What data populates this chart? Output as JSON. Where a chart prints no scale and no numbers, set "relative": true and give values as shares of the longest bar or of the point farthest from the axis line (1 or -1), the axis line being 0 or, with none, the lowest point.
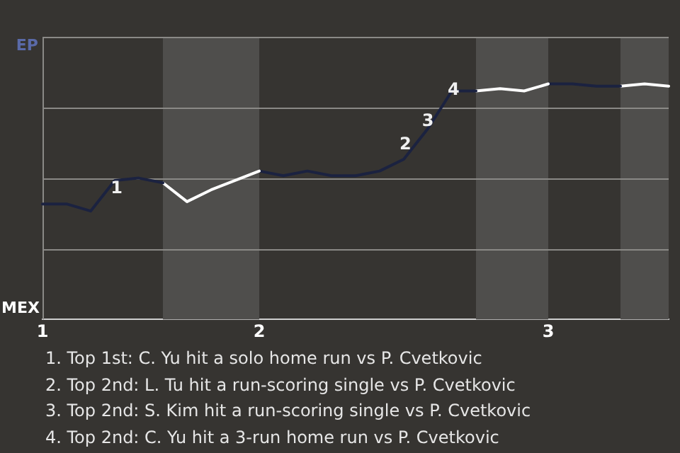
{
  "chart_data": {
    "type": "line",
    "categories": [
      "1",
      null,
      null,
      null,
      null,
      null,
      null,
      null,
      null,
      "2",
      null,
      null,
      null,
      null,
      null,
      null,
      null,
      null,
      null,
      null,
      null,
      "3",
      null,
      null,
      null,
      null,
      null
    ],
    "relative": true,
    "series": [
      {
        "color": "#1b2240",
        "values": [
          0.49,
          0.49,
          0.46,
          0.59,
          0.6,
          0.58,
          null,
          null,
          null,
          null,
          null,
          null,
          null,
          null,
          null,
          null,
          null,
          null,
          null,
          null,
          null,
          null,
          null,
          null,
          null,
          null,
          null
        ]
      },
      {
        "color": "#ffffff",
        "values": [
          null,
          null,
          null,
          null,
          null,
          0.58,
          0.5,
          0.55,
          0.59,
          0.63,
          null,
          null,
          null,
          null,
          null,
          null,
          null,
          null,
          null,
          null,
          null,
          null,
          null,
          null,
          null,
          null,
          null
        ]
      },
      {
        "color": "#1b2240",
        "values": [
          null,
          null,
          null,
          null,
          null,
          null,
          null,
          null,
          null,
          0.63,
          0.61,
          0.63,
          0.61,
          0.61,
          0.63,
          0.68,
          0.81,
          0.97,
          0.97,
          null,
          null,
          null,
          null,
          null,
          null,
          null,
          null
        ]
      },
      {
        "color": "#ffffff",
        "values": [
          null,
          null,
          null,
          null,
          null,
          null,
          null,
          null,
          null,
          null,
          null,
          null,
          null,
          null,
          null,
          null,
          null,
          null,
          0.97,
          0.98,
          0.97,
          1,
          null,
          null,
          null,
          null,
          null
        ]
      },
      {
        "color": "#1b2240",
        "values": [
          null,
          null,
          null,
          null,
          null,
          null,
          null,
          null,
          null,
          null,
          null,
          null,
          null,
          null,
          null,
          null,
          null,
          null,
          null,
          null,
          null,
          1,
          1,
          0.99,
          0.99,
          null,
          null
        ]
      },
      {
        "color": "#ffffff",
        "values": [
          null,
          null,
          null,
          null,
          null,
          null,
          null,
          null,
          null,
          null,
          null,
          null,
          null,
          null,
          null,
          null,
          null,
          null,
          null,
          null,
          null,
          null,
          null,
          null,
          0.99,
          1,
          0.99
        ]
      }
    ],
    "grid": "y",
    "marker": "none",
    "line_style": "solid",
    "annotations": [
      "EP",
      "MEX",
      "1",
      "2",
      "3",
      "4",
      "1. Top 1st: C. Yu hit a solo home run vs P. Cvetkovic",
      "2. Top 2nd: L. Tu hit a run-scoring single vs P. Cvetkovic",
      "3. Top 2nd: S. Kim hit a run-scoring single vs P. Cvetkovic",
      "4. Top 2nd: C. Yu hit a 3-run home run vs P. Cvetkovic"
    ]
  }
}
